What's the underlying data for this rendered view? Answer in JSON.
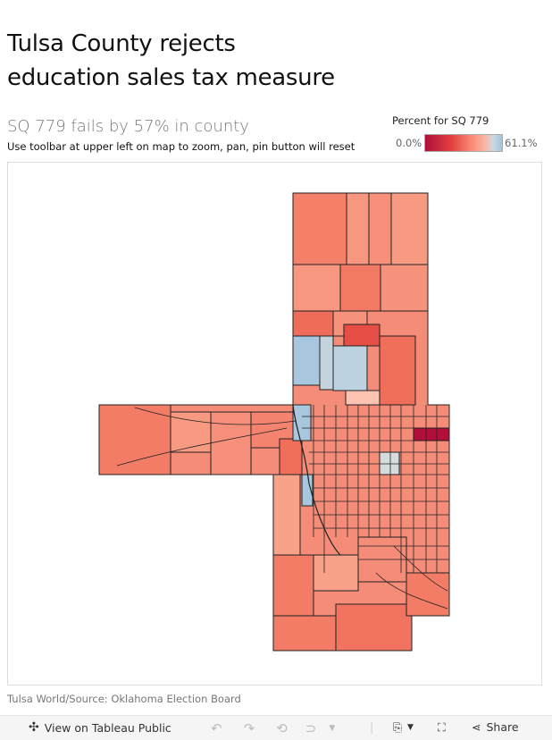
{
  "header": {
    "title_line1": "Tulsa County rejects",
    "title_line2": "education sales tax measure",
    "subtitle": "SQ 779 fails by 57% in county",
    "instructions": "Use toolbar at upper left on map to zoom, pan, pin button will reset"
  },
  "legend": {
    "title": "Percent for SQ 779",
    "min_label": "0.0%",
    "max_label": "61.1%",
    "colors": {
      "low": "#b10f3a",
      "mid": "#f78a75",
      "high": "#9ec6e2"
    }
  },
  "map": {
    "region": "Tulsa County precincts"
  },
  "source": "Tulsa World/Source: Oklahoma Election Board",
  "toolbar": {
    "view_label": "View on Tableau Public",
    "share_label": "Share",
    "icons": [
      "tableau-icon",
      "undo-icon",
      "redo-icon",
      "revert-icon",
      "refresh-icon",
      "download-icon",
      "fullscreen-icon",
      "share-icon"
    ]
  }
}
